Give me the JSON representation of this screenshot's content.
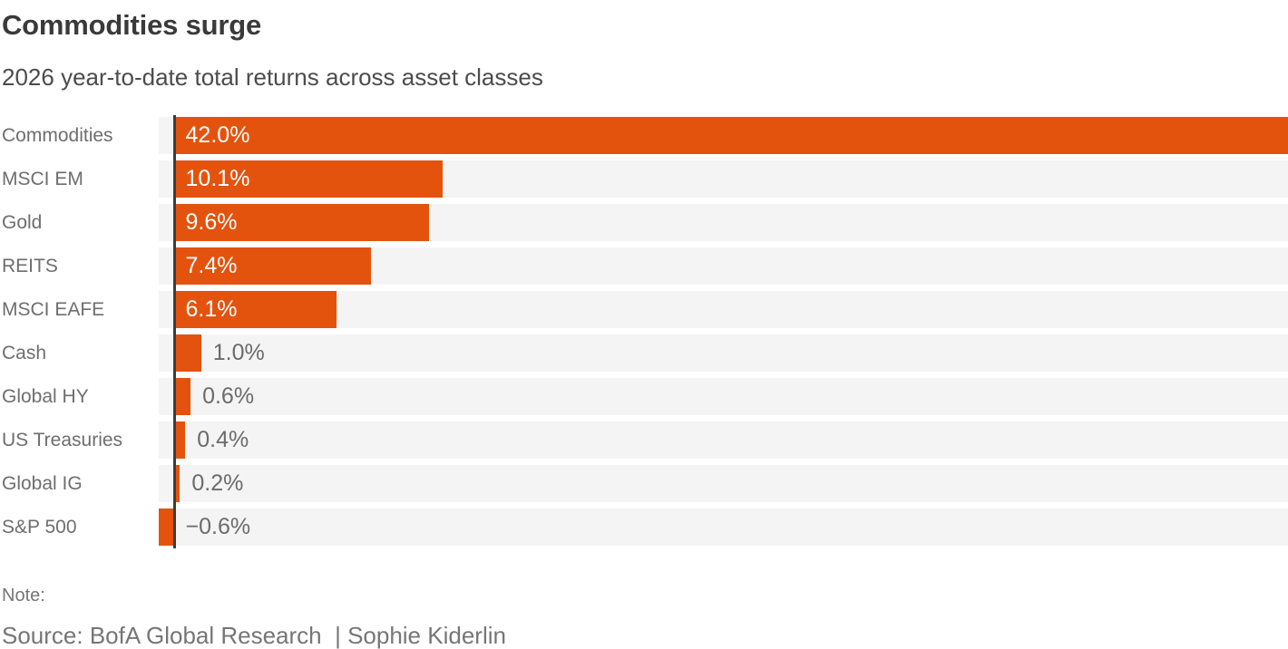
{
  "header": {
    "title": "Commodities surge",
    "subtitle": "2026 year-to-date total returns across asset classes"
  },
  "chart_data": {
    "type": "bar",
    "orientation": "horizontal",
    "categories": [
      "Commodities",
      "MSCI EM",
      "Gold",
      "REITS",
      "MSCI EAFE",
      "Cash",
      "Global HY",
      "US Treasuries",
      "Global IG",
      "S&P 500"
    ],
    "values": [
      42.0,
      10.1,
      9.6,
      7.4,
      6.1,
      1.0,
      0.6,
      0.4,
      0.2,
      -0.6
    ],
    "value_labels": [
      "42.0%",
      "10.1%",
      "9.6%",
      "7.4%",
      "6.1%",
      "1.0%",
      "0.6%",
      "0.4%",
      "0.2%",
      "−0.6%"
    ],
    "xlim": [
      -0.6,
      42.0
    ],
    "grid": false,
    "legend": false,
    "bar_color": "#e3530d",
    "track_color": "#f4f4f4",
    "axis_color": "#3c3c3c",
    "unit": "percent"
  },
  "footer": {
    "note": "Note:",
    "source": "Source: BofA Global Research  | Sophie Kiderlin"
  }
}
